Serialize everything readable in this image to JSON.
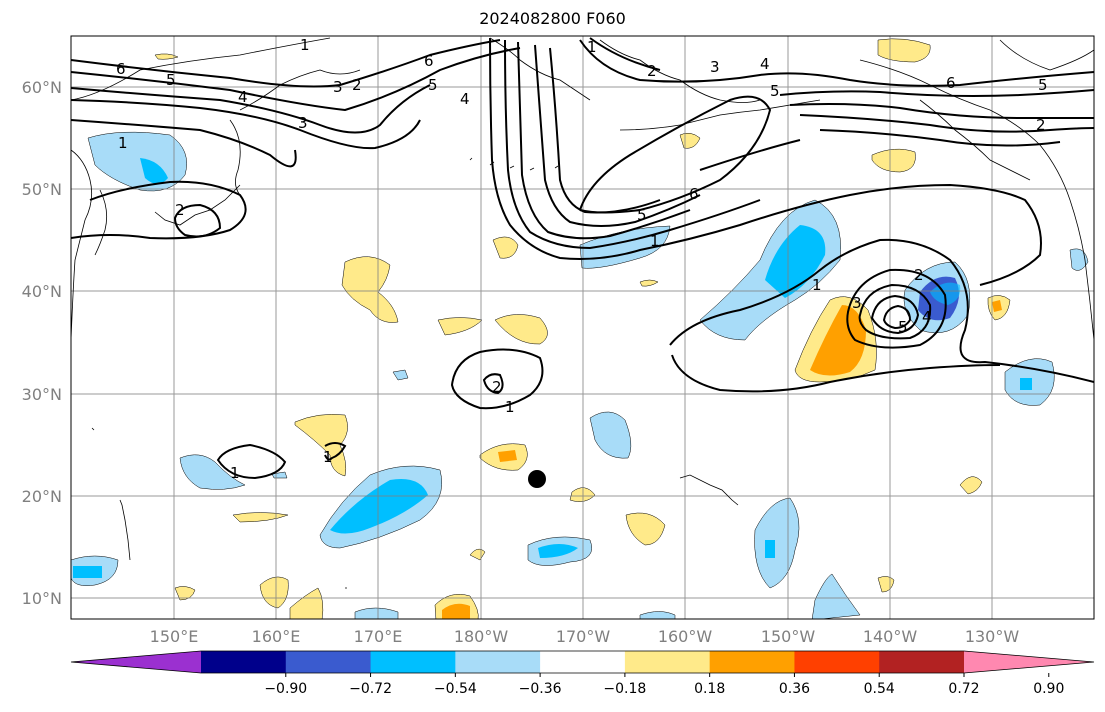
{
  "title": "2024082800 F060",
  "lat_labels": [
    "60°N",
    "50°N",
    "40°N",
    "30°N",
    "20°N",
    "10°N"
  ],
  "lon_labels": [
    "150°E",
    "160°E",
    "170°E",
    "180°W",
    "170°W",
    "160°W",
    "150°W",
    "140°W",
    "130°W"
  ],
  "colorbar": {
    "ticks": [
      "−0.90",
      "−0.72",
      "−0.54",
      "−0.36",
      "−0.18",
      "0.18",
      "0.36",
      "0.54",
      "0.72",
      "0.90"
    ],
    "colors": [
      "#9b30d0",
      "#00008b",
      "#3a5bcf",
      "#00bfff",
      "#a8dcf8",
      "#ffffff",
      "#ffea8a",
      "#ffa000",
      "#ff4000",
      "#b22222",
      "#ff88b0"
    ]
  },
  "contour_labels": [
    "1",
    "2",
    "3",
    "4",
    "5",
    "6"
  ],
  "colors": {
    "contour": "#000000",
    "grid": "#808080",
    "coast": "#000000"
  }
}
